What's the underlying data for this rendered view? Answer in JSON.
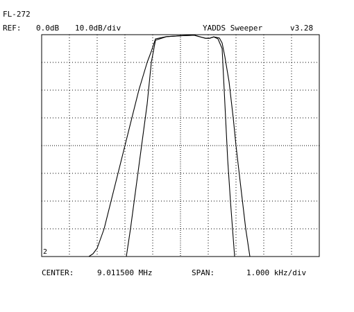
{
  "header": {
    "filter_id": "FL-272",
    "ref_label": "REF:",
    "ref_value": "0.0dB",
    "scale": "10.0dB/div",
    "app_name": "YADDS Sweeper",
    "version": "v3.28"
  },
  "footer": {
    "center_label": "CENTER:",
    "center_value": "9.011500 MHz",
    "span_label": "SPAN:",
    "span_value": "1.000 kHz/div"
  },
  "trace_marker": "2",
  "chart_data": {
    "type": "line",
    "x_unit": "kHz offset from center",
    "y_unit": "dB",
    "xlim": [
      -5,
      5
    ],
    "ylim": [
      -80,
      0
    ],
    "x_divisions": 10,
    "y_divisions": 8,
    "grid": true,
    "series": [
      {
        "x": [
          -5,
          -3.3,
          -3.15,
          -3.0,
          -2.75,
          -2.5,
          -2.25,
          -2.0,
          -1.75,
          -1.5,
          -1.35,
          -1.2,
          -1.05,
          -0.9,
          -0.5,
          0,
          0.25,
          0.5,
          0.75,
          0.9,
          1.05,
          1.2,
          1.4,
          1.5,
          1.6,
          1.75,
          1.9,
          2.0,
          2.15,
          2.35,
          2.5,
          5
        ],
        "y": [
          -80,
          -80,
          -79,
          -77,
          -70,
          -60,
          -50,
          -40,
          -30,
          -20,
          -15,
          -10,
          -6,
          -1.5,
          -0.7,
          -0.4,
          -0.3,
          -0.2,
          -0.9,
          -1.3,
          -1.3,
          -0.8,
          -1.2,
          -3,
          -8,
          -17,
          -30,
          -40,
          -53,
          -70,
          -80,
          -80
        ]
      },
      {
        "x": [
          -5,
          -1.95,
          -1.8,
          -1.6,
          -1.4,
          -1.2,
          -1.05,
          -0.9,
          -0.5,
          0,
          0.25,
          0.5,
          0.75,
          0.9,
          1.05,
          1.2,
          1.35,
          1.5,
          1.6,
          1.7,
          1.8,
          1.95,
          5
        ],
        "y": [
          -80,
          -80,
          -70,
          -55,
          -40,
          -25,
          -10,
          -2,
          -0.7,
          -0.4,
          -0.3,
          -0.2,
          -0.9,
          -1.3,
          -1.3,
          -0.8,
          -1.5,
          -5,
          -25,
          -45,
          -60,
          -80,
          -80
        ]
      }
    ]
  }
}
